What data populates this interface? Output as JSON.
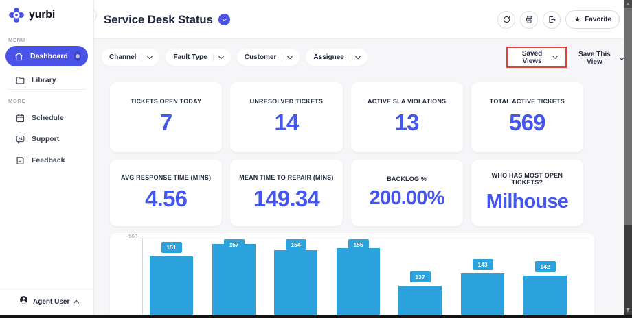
{
  "brand": {
    "name": "yurbi"
  },
  "sidebar": {
    "menu_label": "MENU",
    "more_label": "MORE",
    "menu_items": [
      {
        "label": "Dashboard",
        "icon": "home-icon",
        "active": true
      },
      {
        "label": "Library",
        "icon": "folder-icon",
        "active": false
      }
    ],
    "more_items": [
      {
        "label": "Schedule",
        "icon": "calendar-icon"
      },
      {
        "label": "Support",
        "icon": "support-24-icon"
      },
      {
        "label": "Feedback",
        "icon": "feedback-icon"
      }
    ],
    "user": {
      "name": "Agent User",
      "icon": "person-icon"
    }
  },
  "header": {
    "title": "Service Desk Status",
    "title_badge_icon": "chevron-down-icon",
    "collapse_icon": "chevron-left-icon",
    "actions": [
      {
        "icon": "refresh-icon"
      },
      {
        "icon": "printer-icon"
      },
      {
        "icon": "export-icon"
      }
    ],
    "favorite_label": "Favorite",
    "favorite_icon": "star-icon"
  },
  "filters": {
    "pills": [
      "Channel",
      "Fault Type",
      "Customer",
      "Assignee"
    ],
    "saved_views_label": "Saved Views",
    "save_this_view_label": "Save This View"
  },
  "kpis": [
    {
      "label": "TICKETS OPEN TODAY",
      "value": "7"
    },
    {
      "label": "UNRESOLVED TICKETS",
      "value": "14"
    },
    {
      "label": "ACTIVE SLA VIOLATIONS",
      "value": "13"
    },
    {
      "label": "TOTAL ACTIVE TICKETS",
      "value": "569"
    },
    {
      "label": "AVG RESPONSE TIME (MINS)",
      "value": "4.56"
    },
    {
      "label": "MEAN TIME TO REPAIR (MINS)",
      "value": "149.34"
    },
    {
      "label": "BACKLOG %",
      "value": "200.00%"
    },
    {
      "label": "WHO HAS MOST OPEN TICKETS?",
      "value": "Milhouse"
    }
  ],
  "chart_data": {
    "type": "bar",
    "values": [
      151,
      157,
      154,
      155,
      137,
      143,
      142
    ],
    "y_axis_top_tick": "160",
    "ylim_top": 160,
    "grid": true,
    "bar_color": "#2BA2DC",
    "note_visible_region": "bars cropped at bottom edge of viewport"
  },
  "colors": {
    "accent_blue": "#4A52E8",
    "kpi_value_blue": "#4456EE",
    "bar_blue": "#2BA2DC",
    "annotation_red": "#E8402E",
    "content_bg": "#F6F6F8"
  }
}
